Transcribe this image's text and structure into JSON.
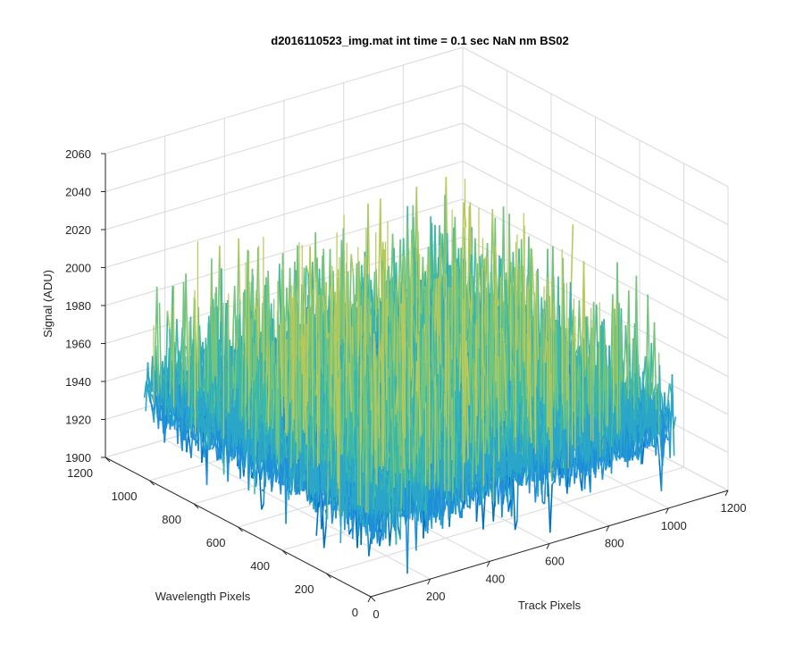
{
  "chart_data": {
    "type": "surface",
    "title": "d2016110523_img.mat int time = 0.1 sec  NaN nm BS02",
    "xlabel": "Track Pixels",
    "ylabel": "Wavelength Pixels",
    "zlabel": "Signal (ADU)",
    "xlim": [
      0,
      1200
    ],
    "ylim": [
      0,
      1200
    ],
    "zlim": [
      1900,
      2060
    ],
    "xticks": [
      "0",
      "200",
      "400",
      "600",
      "800",
      "1000",
      "1200"
    ],
    "yticks": [
      "0",
      "200",
      "400",
      "600",
      "800",
      "1000",
      "1200"
    ],
    "zticks": [
      "1900",
      "1920",
      "1940",
      "1960",
      "1980",
      "2000",
      "2020",
      "2040",
      "2060"
    ],
    "grid": true,
    "surface_extent": {
      "x": [
        0,
        1024
      ],
      "y": [
        0,
        1024
      ]
    },
    "baseline_signal": 1945,
    "typical_range": [
      1915,
      1985
    ],
    "peak_signal": 2045,
    "colormap": [
      "#0072bd",
      "#1e8fd8",
      "#2ba6c8",
      "#3cb8a8",
      "#75c47e",
      "#b7c95a"
    ]
  }
}
